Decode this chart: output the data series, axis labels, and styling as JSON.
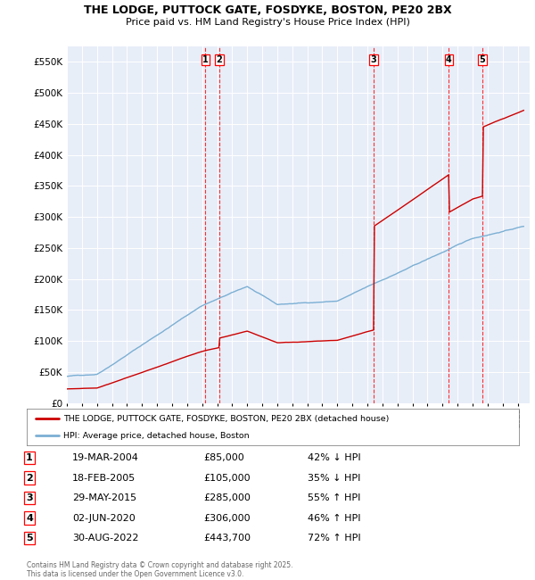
{
  "title_line1": "THE LODGE, PUTTOCK GATE, FOSDYKE, BOSTON, PE20 2BX",
  "title_line2": "Price paid vs. HM Land Registry's House Price Index (HPI)",
  "house_color": "#cc0000",
  "hpi_color": "#7bafd4",
  "plot_bg_color": "#e8eef8",
  "ylim": [
    0,
    575000
  ],
  "yticks": [
    0,
    50000,
    100000,
    150000,
    200000,
    250000,
    300000,
    350000,
    400000,
    450000,
    500000,
    550000
  ],
  "sale_years": [
    2004.22,
    2005.13,
    2015.41,
    2020.42,
    2022.66
  ],
  "sale_prices": [
    85000,
    105000,
    285000,
    306000,
    443700
  ],
  "sale_labels": [
    "1",
    "2",
    "3",
    "4",
    "5"
  ],
  "table_data": [
    [
      "1",
      "19-MAR-2004",
      "£85,000",
      "42% ↓ HPI"
    ],
    [
      "2",
      "18-FEB-2005",
      "£105,000",
      "35% ↓ HPI"
    ],
    [
      "3",
      "29-MAY-2015",
      "£285,000",
      "55% ↑ HPI"
    ],
    [
      "4",
      "02-JUN-2020",
      "£306,000",
      "46% ↑ HPI"
    ],
    [
      "5",
      "30-AUG-2022",
      "£443,700",
      "72% ↑ HPI"
    ]
  ],
  "legend_house": "THE LODGE, PUTTOCK GATE, FOSDYKE, BOSTON, PE20 2BX (detached house)",
  "legend_hpi": "HPI: Average price, detached house, Boston",
  "footnote": "Contains HM Land Registry data © Crown copyright and database right 2025.\nThis data is licensed under the Open Government Licence v3.0."
}
